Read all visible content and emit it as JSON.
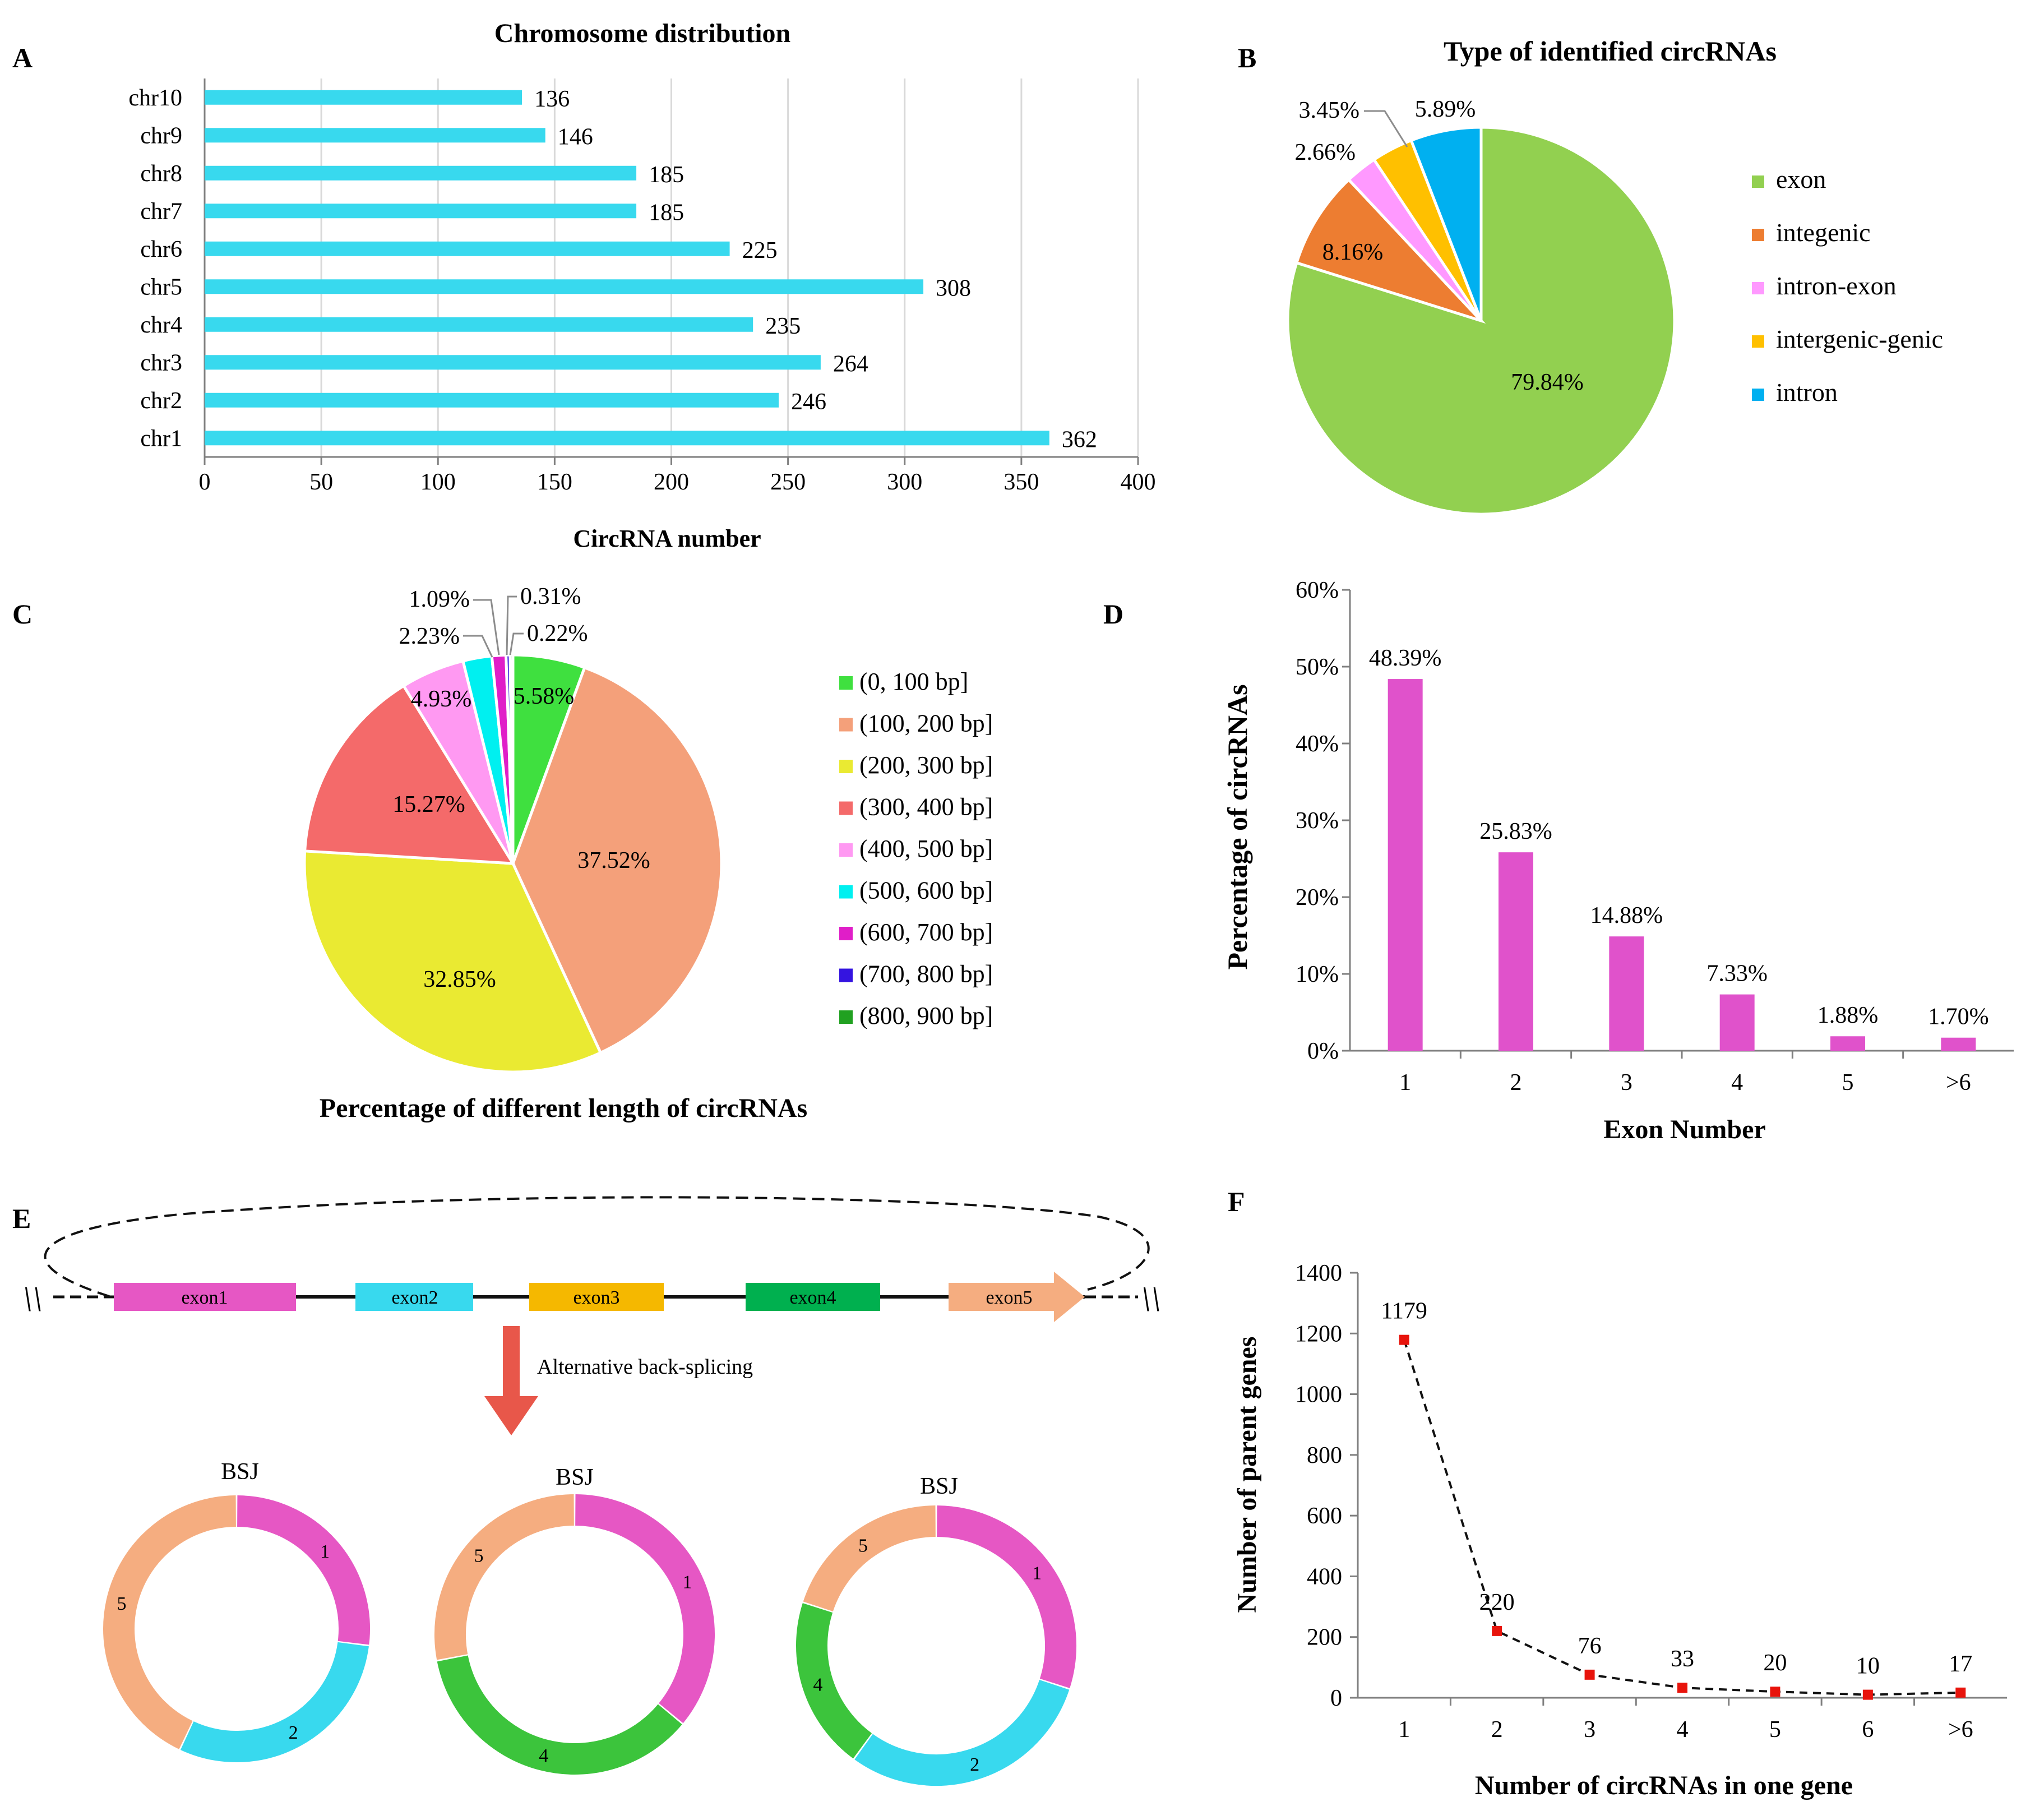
{
  "panel_labels": {
    "a": "A",
    "b": "B",
    "c": "C",
    "d": "D",
    "e": "E",
    "f": "F"
  },
  "colors": {
    "bar_a": "#38d9ee",
    "bar_d": "#e052cb",
    "marker_f": "#e8140c",
    "grid": "#d9d9d9",
    "axis": "#7f7f7f",
    "exon1": "#e657c4",
    "exon2": "#38d9ee",
    "exon3": "#f5b800",
    "exon4": "#00b04f",
    "exon5": "#f5ad80",
    "ring4": "#3cc43c",
    "arrow": "#e8574a"
  },
  "chart_data": [
    {
      "id": "A",
      "type": "bar",
      "orientation": "horizontal",
      "title": "Chromosome distribution",
      "xlabel": "CircRNA number",
      "ylabel": "",
      "categories": [
        "chr10",
        "chr9",
        "chr8",
        "chr7",
        "chr6",
        "chr5",
        "chr4",
        "chr3",
        "chr2",
        "chr1"
      ],
      "values": [
        136,
        146,
        185,
        185,
        225,
        308,
        235,
        264,
        246,
        362
      ],
      "value_labels": [
        "136",
        "146",
        "185",
        "185",
        "225",
        "308",
        "235",
        "264",
        "246",
        "362"
      ],
      "xlim": [
        0,
        400
      ],
      "xticks": [
        "0",
        "50",
        "100",
        "150",
        "200",
        "250",
        "300",
        "350",
        "400"
      ],
      "grid": true
    },
    {
      "id": "B",
      "type": "pie",
      "title": "Type of identified circRNAs",
      "labels": [
        "exon",
        "integenic",
        "intron-exon",
        "intergenic-genic",
        "intron"
      ],
      "values": [
        79.84,
        8.16,
        2.66,
        3.45,
        5.89
      ],
      "value_labels": [
        "79.84%",
        "8.16%",
        "2.66%",
        "3.45%",
        "5.89%"
      ],
      "colors": [
        "#92d050",
        "#ed7d31",
        "#ff99ff",
        "#ffc000",
        "#00b0f0"
      ],
      "legend": "right"
    },
    {
      "id": "C",
      "type": "pie",
      "title": "Percentage  of  different length of circRNAs",
      "labels": [
        "(0, 100 bp]",
        "(100, 200 bp]",
        "(200, 300 bp]",
        "(300, 400 bp]",
        "(400, 500 bp]",
        "(500, 600 bp]",
        "(600, 700 bp]",
        "(700, 800 bp]",
        "(800, 900 bp]"
      ],
      "values": [
        5.58,
        37.52,
        32.85,
        15.27,
        4.93,
        2.23,
        1.09,
        0.31,
        0.22
      ],
      "value_labels": [
        "5.58%",
        "37.52%",
        "32.85%",
        "15.27%",
        "4.93%",
        "2.23%",
        "1.09%",
        "0.31%",
        "0.22%"
      ],
      "colors": [
        "#3fe03f",
        "#f4a07a",
        "#eaea32",
        "#f46a6a",
        "#ff99f2",
        "#00f0f0",
        "#e01ec8",
        "#3414e0",
        "#21a121"
      ],
      "legend": "right"
    },
    {
      "id": "D",
      "type": "bar",
      "orientation": "vertical",
      "title": "",
      "xlabel": "Exon Number",
      "ylabel": "Percentage  of  circRNAs",
      "categories": [
        "1",
        "2",
        "3",
        "4",
        "5",
        ">6"
      ],
      "values": [
        48.39,
        25.83,
        14.88,
        7.33,
        1.88,
        1.7
      ],
      "value_labels": [
        "48.39%",
        "25.83%",
        "14.88%",
        "7.33%",
        "1.88%",
        "1.70%"
      ],
      "ylim": [
        0,
        60
      ],
      "yticks": [
        "0%",
        "10%",
        "20%",
        "30%",
        "40%",
        "50%",
        "60%"
      ],
      "grid": false
    },
    {
      "id": "F",
      "type": "line",
      "title": "",
      "xlabel": "Number of circRNAs in one gene",
      "ylabel": "Number of parent genes",
      "categories": [
        "1",
        "2",
        "3",
        "4",
        "5",
        "6",
        ">6"
      ],
      "values": [
        1179,
        220,
        76,
        33,
        20,
        10,
        17
      ],
      "value_labels": [
        "1179",
        "220",
        "76",
        "33",
        "20",
        "10",
        "17"
      ],
      "ylim": [
        0,
        1400
      ],
      "yticks": [
        "0",
        "200",
        "400",
        "600",
        "800",
        "1000",
        "1200",
        "1400"
      ],
      "line_style": "dashed",
      "grid": false
    }
  ],
  "diagram_e": {
    "exons": [
      "exon1",
      "exon2",
      "exon3",
      "exon4",
      "exon5"
    ],
    "arrow_label": "Alternative back-splicing",
    "break_symbol": "\\\\",
    "bsj_label": "BSJ",
    "circles": [
      {
        "segments": [
          {
            "label": "1",
            "exon": 1,
            "share": 0.27
          },
          {
            "label": "2",
            "exon": 2,
            "share": 0.3
          },
          {
            "label": "5",
            "exon": 5,
            "share": 0.43
          }
        ]
      },
      {
        "segments": [
          {
            "label": "1",
            "exon": 1,
            "share": 0.36
          },
          {
            "label": "4",
            "exon": 4,
            "share": 0.36
          },
          {
            "label": "5",
            "exon": 5,
            "share": 0.28
          }
        ]
      },
      {
        "segments": [
          {
            "label": "1",
            "exon": 1,
            "share": 0.3
          },
          {
            "label": "2",
            "exon": 2,
            "share": 0.3
          },
          {
            "label": "4",
            "exon": 4,
            "share": 0.2
          },
          {
            "label": "5",
            "exon": 5,
            "share": 0.2
          }
        ]
      }
    ]
  }
}
